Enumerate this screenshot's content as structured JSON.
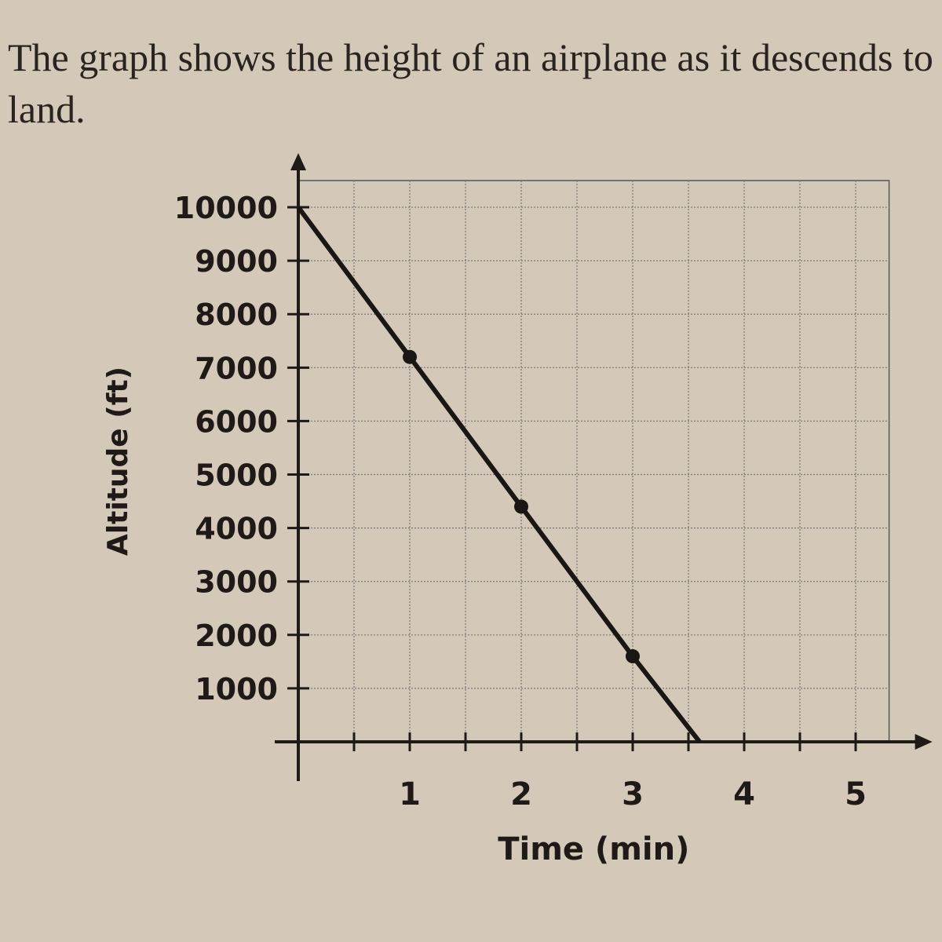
{
  "text": "The graph shows the height of an airplane as it descends to land.",
  "chart_data": {
    "type": "line",
    "x_label": "Time (min)",
    "y_label": "Altitude (ft)",
    "x": [
      0,
      1,
      2,
      3,
      3.6
    ],
    "values": [
      10000,
      7200,
      4400,
      1600,
      0
    ],
    "points": {
      "x": [
        1,
        2,
        3
      ],
      "values": [
        7200,
        4400,
        1600
      ]
    },
    "color": "#1a1614",
    "xlim": [
      0,
      5.3
    ],
    "ylim": [
      0,
      10500
    ],
    "xticks": [
      1,
      2,
      3,
      4,
      5
    ],
    "xminorticks": [
      0.5,
      1.5,
      2.5,
      3.5,
      4.5
    ],
    "yticks": [
      1000,
      2000,
      3000,
      4000,
      5000,
      6000,
      7000,
      8000,
      9000,
      10000
    ],
    "grid": true
  }
}
